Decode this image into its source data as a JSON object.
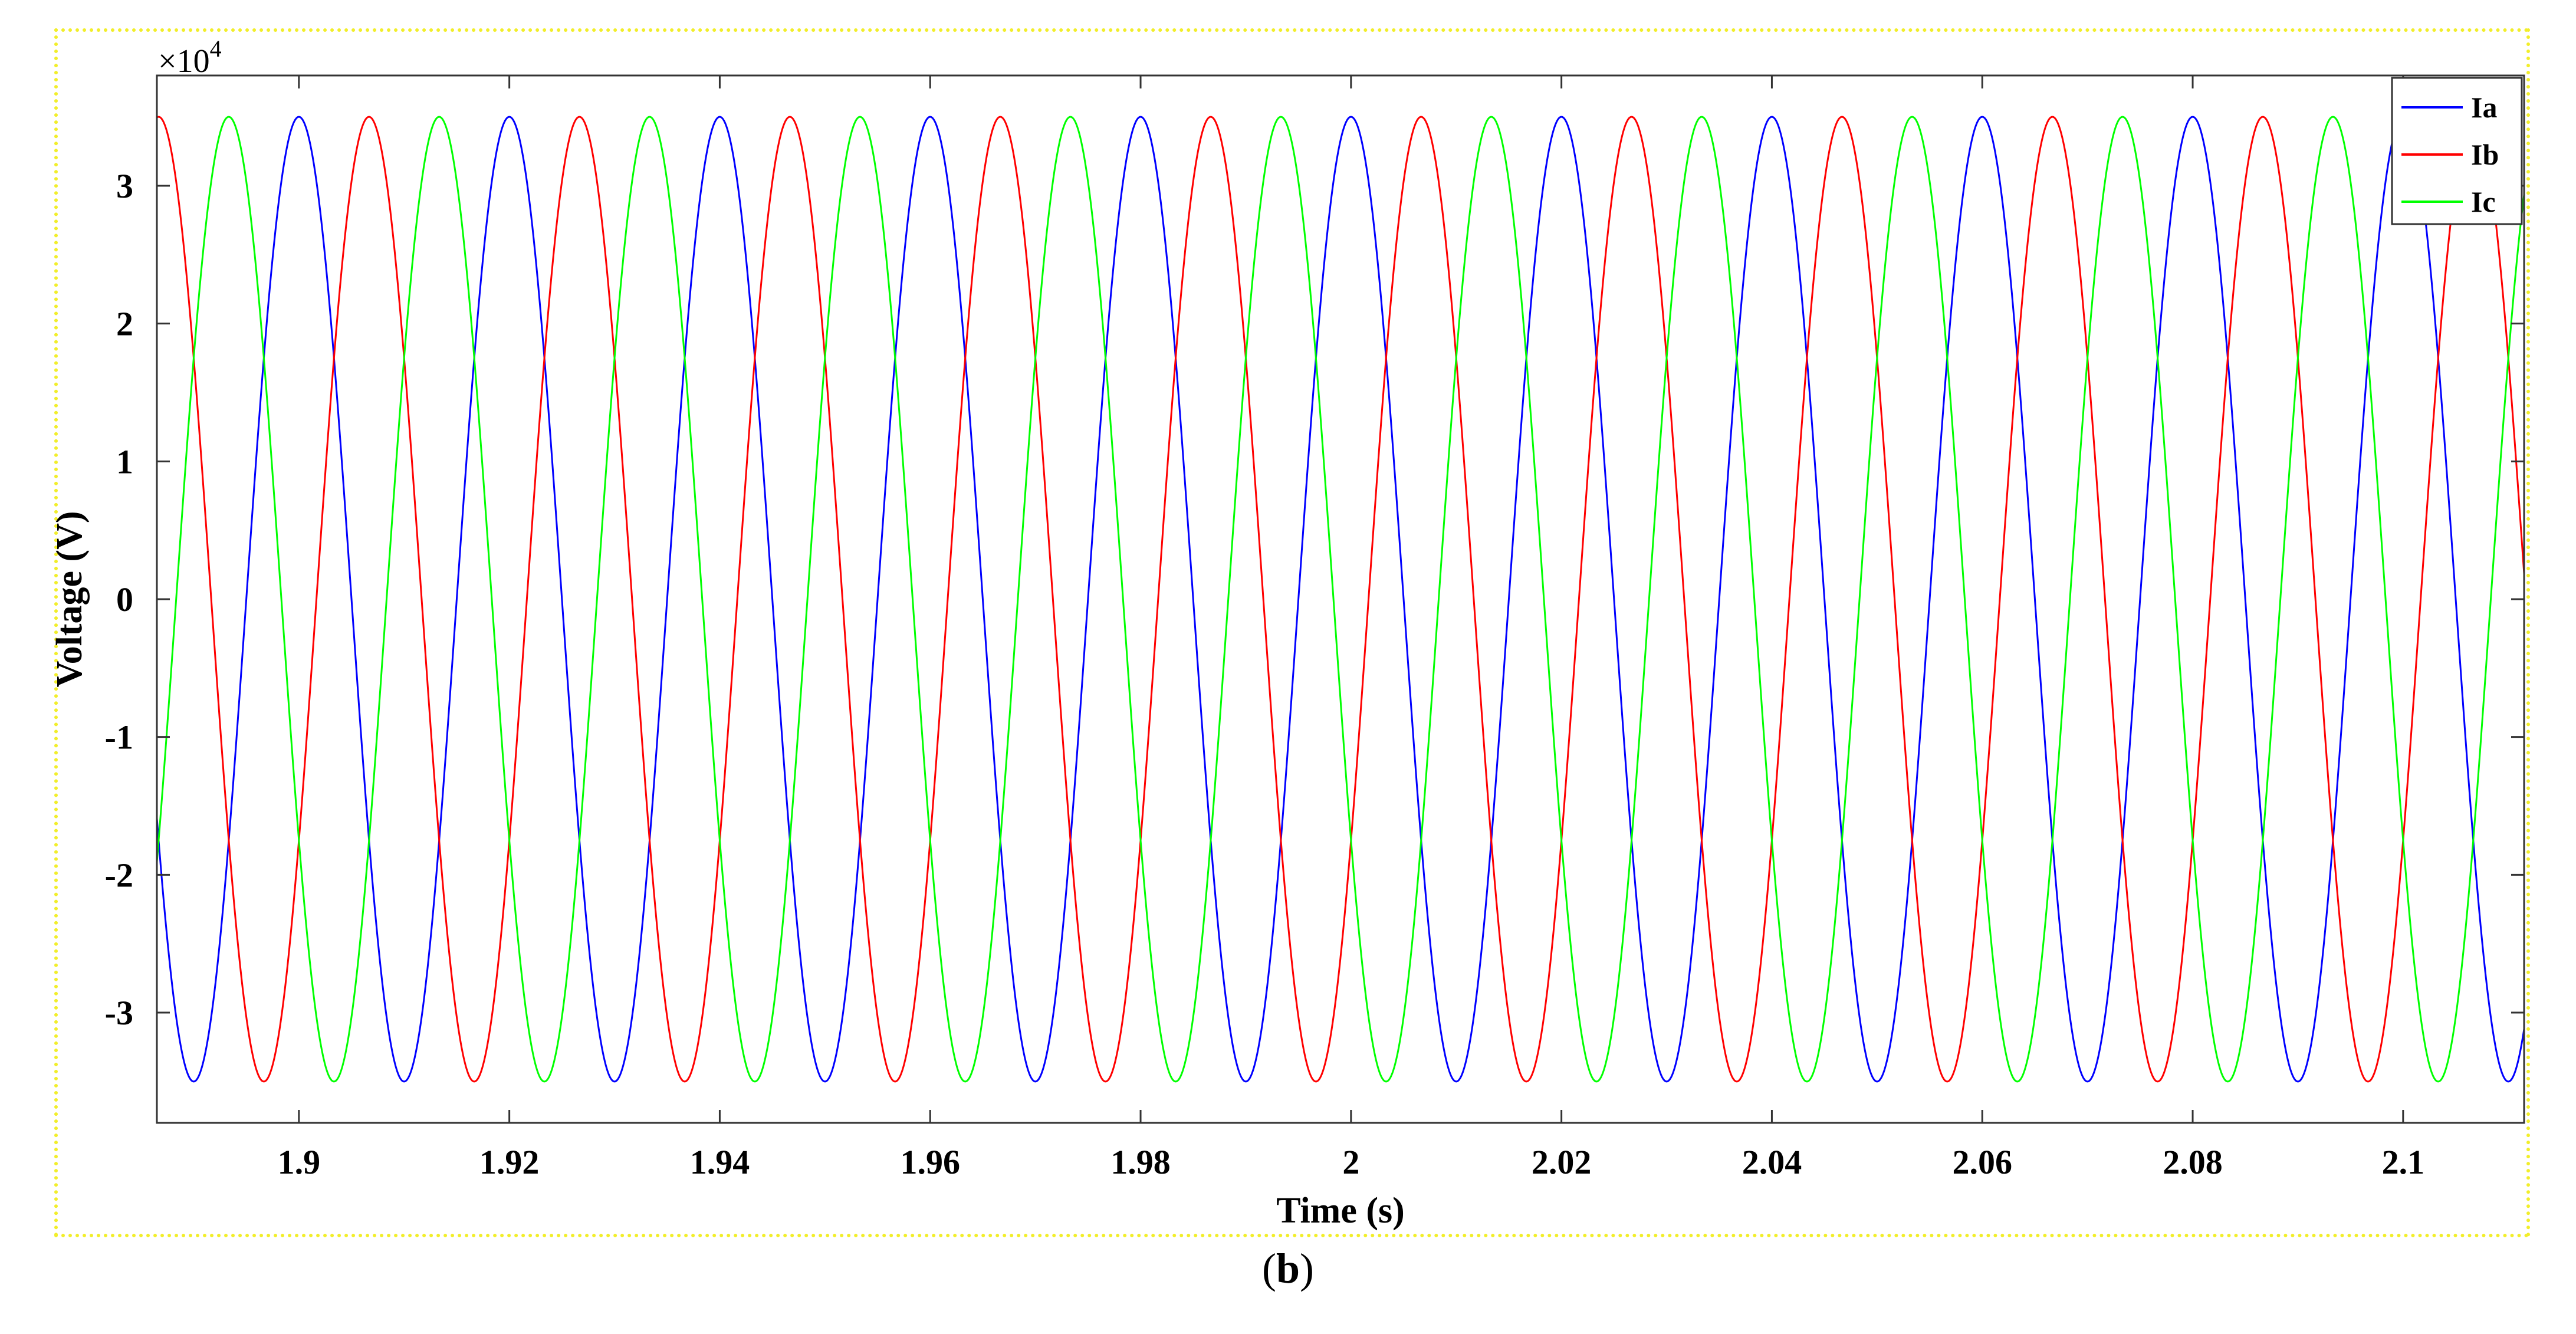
{
  "chart_data": {
    "type": "line",
    "xlabel": "Time (s)",
    "ylabel": "Voltage (V)",
    "y_multiplier_label": "×10",
    "y_multiplier_exponent": "4",
    "xlim": [
      1.8865,
      2.1115
    ],
    "ylim": [
      -3.8,
      3.8
    ],
    "x_ticks": [
      1.9,
      1.92,
      1.94,
      1.96,
      1.98,
      2.0,
      2.02,
      2.04,
      2.06,
      2.08,
      2.1
    ],
    "x_tick_labels": [
      "1.9",
      "1.92",
      "1.94",
      "1.96",
      "1.98",
      "2",
      "2.02",
      "2.04",
      "2.06",
      "2.08",
      "2.1"
    ],
    "y_ticks": [
      -3,
      -2,
      -1,
      0,
      1,
      2,
      3
    ],
    "y_tick_labels": [
      "-3",
      "-2",
      "-1",
      "0",
      "1",
      "2",
      "3"
    ],
    "grid": false,
    "legend_position": "top-right",
    "waveform": {
      "frequency_hz": 50,
      "amplitude": 3.5
    },
    "series": [
      {
        "name": "Ia",
        "color": "#0000ff",
        "phase_deg": 0
      },
      {
        "name": "Ib",
        "color": "#ff0000",
        "phase_deg": -120
      },
      {
        "name": "Ic",
        "color": "#00ff00",
        "phase_deg": 120
      }
    ]
  },
  "caption": {
    "open": "(",
    "letter": "b",
    "close": ")"
  }
}
